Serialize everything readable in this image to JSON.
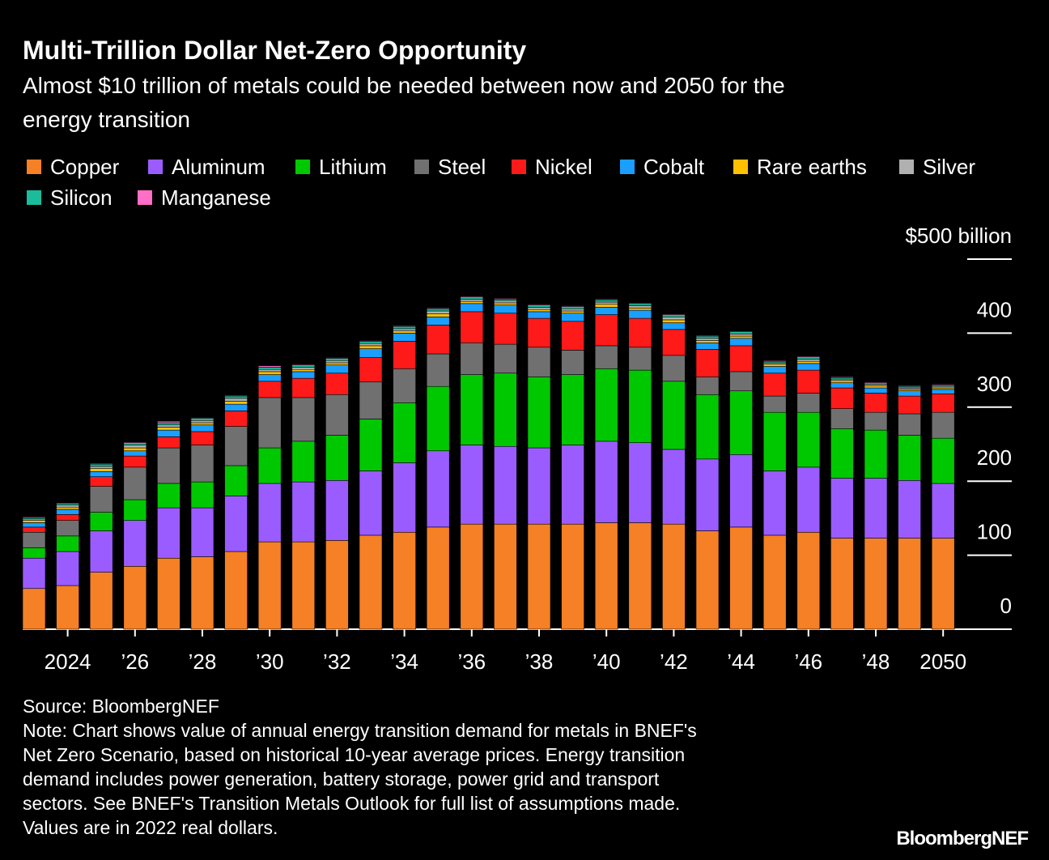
{
  "chart_data": {
    "type": "stacked-bar",
    "title": "Multi-Trillion Dollar Net-Zero Opportunity",
    "subtitle": [
      "Almost $10 trillion of metals could be needed between now and 2050 for the",
      "energy transition"
    ],
    "categories": [
      null,
      "2024",
      null,
      "’26",
      null,
      "’28",
      null,
      "’30",
      null,
      "’32",
      null,
      "’34",
      null,
      "’36",
      null,
      "’38",
      null,
      "’40",
      null,
      "’42",
      null,
      "’44",
      null,
      "’46",
      null,
      "’48",
      null,
      "2050"
    ],
    "series": [
      {
        "name": "Copper",
        "color": "#f58025",
        "values": [
          55,
          59,
          77,
          85,
          96,
          98,
          105,
          118,
          118,
          120,
          127,
          131,
          138,
          142,
          142,
          142,
          142,
          144,
          144,
          142,
          133,
          138,
          127,
          131,
          123,
          123,
          123,
          123
        ]
      },
      {
        "name": "Aluminum",
        "color": "#9b5cff",
        "values": [
          41,
          46,
          56,
          62,
          68,
          66,
          75,
          79,
          81,
          81,
          87,
          94,
          103,
          107,
          105,
          103,
          107,
          110,
          108,
          101,
          97,
          98,
          87,
          88,
          81,
          81,
          78,
          74
        ]
      },
      {
        "name": "Lithium",
        "color": "#00c800",
        "values": [
          14,
          21,
          25,
          28,
          33,
          35,
          41,
          48,
          55,
          61,
          70,
          81,
          87,
          95,
          99,
          96,
          95,
          98,
          98,
          92,
          87,
          86,
          79,
          74,
          67,
          65,
          61,
          61
        ]
      },
      {
        "name": "Steel",
        "color": "#707070",
        "values": [
          21,
          21,
          35,
          44,
          48,
          50,
          53,
          68,
          59,
          55,
          50,
          46,
          44,
          43,
          39,
          40,
          33,
          31,
          31,
          35,
          24,
          26,
          22,
          26,
          27,
          24,
          29,
          35
        ]
      },
      {
        "name": "Nickel",
        "color": "#ff1a1a",
        "values": [
          7,
          8,
          13,
          15,
          15,
          18,
          21,
          22,
          26,
          29,
          33,
          37,
          39,
          42,
          42,
          39,
          39,
          42,
          39,
          35,
          37,
          35,
          31,
          31,
          28,
          26,
          24,
          25
        ]
      },
      {
        "name": "Cobalt",
        "color": "#1a9fff",
        "values": [
          6,
          7,
          7,
          7,
          9,
          9,
          9,
          9,
          9,
          11,
          12,
          11,
          11,
          11,
          11,
          9,
          11,
          10,
          11,
          9,
          9,
          10,
          9,
          9,
          7,
          7,
          7,
          6
        ]
      },
      {
        "name": "Rare earths",
        "color": "#ffc000",
        "values": [
          3,
          3,
          4,
          4,
          4,
          3,
          4,
          4,
          3,
          3,
          4,
          3,
          4,
          3,
          3,
          3,
          3,
          4,
          3,
          4,
          3,
          3,
          3,
          3,
          3,
          3,
          2,
          2
        ]
      },
      {
        "name": "Silver",
        "color": "#b0b0b0",
        "values": [
          2,
          3,
          3,
          4,
          3,
          3,
          4,
          3,
          3,
          3,
          3,
          3,
          4,
          3,
          3,
          3,
          3,
          3,
          3,
          4,
          3,
          3,
          2,
          3,
          2,
          2,
          2,
          2
        ]
      },
      {
        "name": "Silicon",
        "color": "#1bbc9b",
        "values": [
          2,
          2,
          3,
          3,
          3,
          3,
          3,
          3,
          3,
          3,
          3,
          3,
          3,
          3,
          2,
          3,
          3,
          3,
          3,
          3,
          3,
          3,
          2,
          3,
          2,
          2,
          2,
          2
        ]
      },
      {
        "name": "Manganese",
        "color": "#ff6ec7",
        "values": [
          1,
          1,
          1,
          1,
          2,
          1,
          1,
          2,
          1,
          1,
          1,
          1,
          1,
          1,
          1,
          1,
          1,
          1,
          1,
          1,
          1,
          1,
          1,
          1,
          1,
          1,
          1,
          1
        ]
      }
    ],
    "ylim": [
      0,
      500
    ],
    "yticks": [
      0,
      100,
      200,
      300,
      400,
      {
        "value": 500,
        "label": "$500 billion"
      }
    ],
    "source": "Source: BloombergNEF",
    "note": [
      "Note: Chart shows value of annual energy transition demand for metals in BNEF's",
      "Net Zero Scenario, based on historical 10-year average prices. Energy transition",
      "demand includes power generation, battery storage, power grid and transport",
      "sectors. See BNEF's Transition Metals Outlook for full list of assumptions made.",
      "Values are in 2022 real dollars."
    ],
    "brand": "BloombergNEF"
  }
}
